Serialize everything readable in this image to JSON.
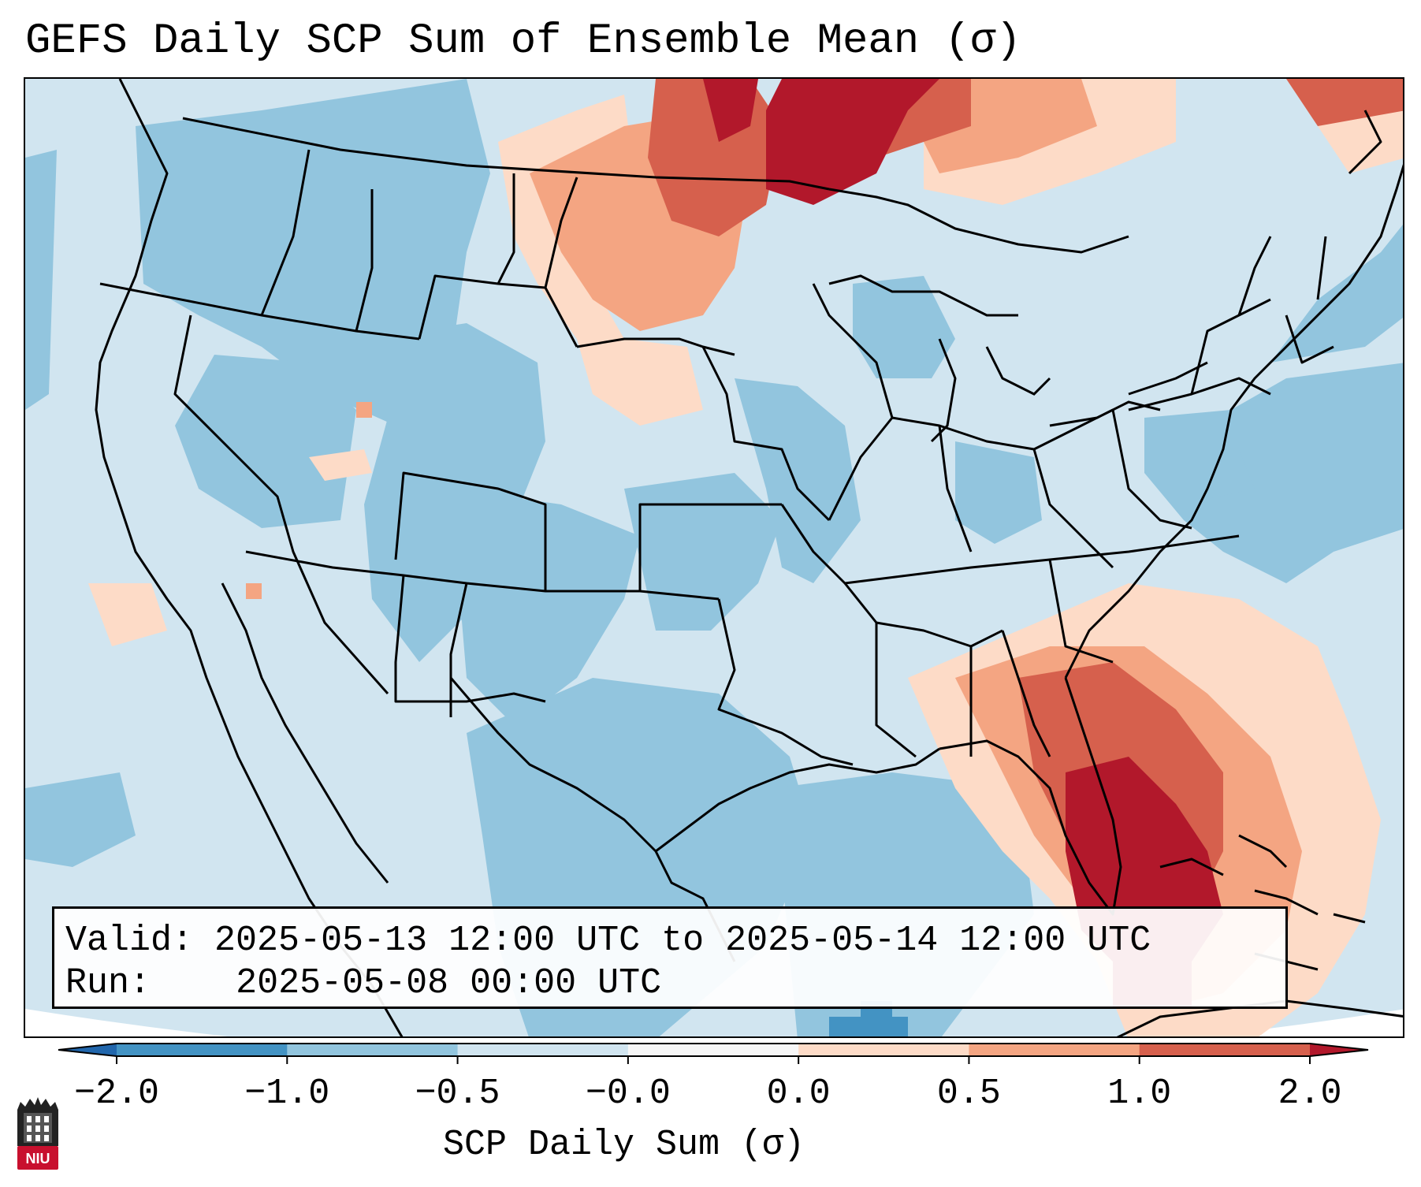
{
  "title": "GEFS Daily SCP Sum of Ensemble Mean (σ)",
  "info": {
    "valid_label": "Valid:",
    "valid_value": "2025-05-13 12:00 UTC to 2025-05-14 12:00 UTC",
    "run_label": "Run:",
    "run_value": "2025-05-08 00:00 UTC"
  },
  "colorbar": {
    "label": "SCP Daily Sum (σ)",
    "bins": [
      {
        "from": -2.0,
        "to": -1.0,
        "color": "#4393c3"
      },
      {
        "from": -1.0,
        "to": -0.5,
        "color": "#92c5de"
      },
      {
        "from": -0.5,
        "to": -0.0,
        "color": "#d1e5f0"
      },
      {
        "from": -0.0,
        "to": 0.0,
        "color": "#f7f7f7"
      },
      {
        "from": 0.0,
        "to": 0.5,
        "color": "#fddbc7"
      },
      {
        "from": 0.5,
        "to": 1.0,
        "color": "#f4a582"
      },
      {
        "from": 1.0,
        "to": 2.0,
        "color": "#d6604d"
      }
    ],
    "under_color": "#2166ac",
    "over_color": "#b2182b",
    "ticks": [
      "−2.0",
      "−1.0",
      "−0.5",
      "−0.0",
      "0.0",
      "0.5",
      "1.0",
      "2.0"
    ]
  },
  "logo": {
    "text": "NIU",
    "color": "#c8102e"
  }
}
